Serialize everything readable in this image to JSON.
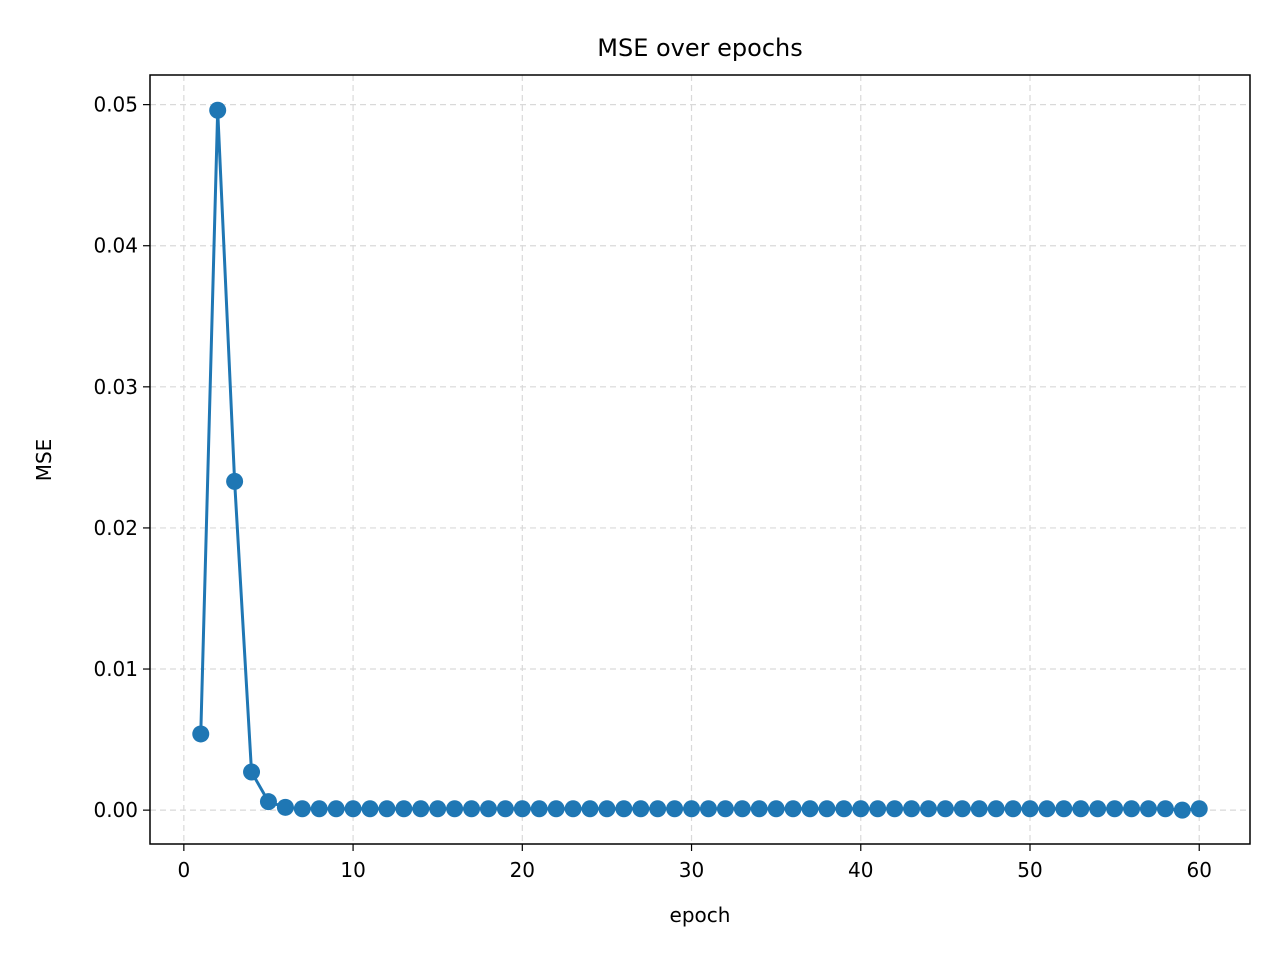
{
  "chart_data": {
    "type": "line",
    "title": "MSE over epochs",
    "xlabel": "epoch",
    "ylabel": "MSE",
    "xlim": [
      -2,
      63
    ],
    "ylim": [
      -0.0024,
      0.0521
    ],
    "xticks": [
      0,
      10,
      20,
      30,
      40,
      50,
      60
    ],
    "yticks": [
      0.0,
      0.01,
      0.02,
      0.03,
      0.04,
      0.05
    ],
    "ytick_labels": [
      "0.00",
      "0.01",
      "0.02",
      "0.03",
      "0.04",
      "0.05"
    ],
    "grid": true,
    "markers": true,
    "colors": {
      "line": "#1f77b4"
    },
    "series": [
      {
        "x": [
          1,
          2,
          3,
          4,
          5,
          6,
          7,
          8,
          9,
          10,
          11,
          12,
          13,
          14,
          15,
          16,
          17,
          18,
          19,
          20,
          21,
          22,
          23,
          24,
          25,
          26,
          27,
          28,
          29,
          30,
          31,
          32,
          33,
          34,
          35,
          36,
          37,
          38,
          39,
          40,
          41,
          42,
          43,
          44,
          45,
          46,
          47,
          48,
          49,
          50,
          51,
          52,
          53,
          54,
          55,
          56,
          57,
          58,
          59,
          60
        ],
        "y": [
          0.0054,
          0.0496,
          0.0233,
          0.0027,
          0.0006,
          0.0002,
          0.0001,
          0.0001,
          0.0001,
          0.0001,
          0.0001,
          0.0001,
          0.0001,
          0.0001,
          0.0001,
          0.0001,
          0.0001,
          0.0001,
          0.0001,
          0.0001,
          0.0001,
          0.0001,
          0.0001,
          0.0001,
          0.0001,
          0.0001,
          0.0001,
          0.0001,
          0.0001,
          0.0001,
          0.0001,
          0.0001,
          0.0001,
          0.0001,
          0.0001,
          0.0001,
          0.0001,
          0.0001,
          0.0001,
          0.0001,
          0.0001,
          0.0001,
          0.0001,
          0.0001,
          0.0001,
          0.0001,
          0.0001,
          0.0001,
          0.0001,
          0.0001,
          0.0001,
          0.0001,
          0.0001,
          0.0001,
          0.0001,
          0.0001,
          0.0001,
          0.0001,
          0.0,
          0.0001
        ]
      }
    ]
  }
}
